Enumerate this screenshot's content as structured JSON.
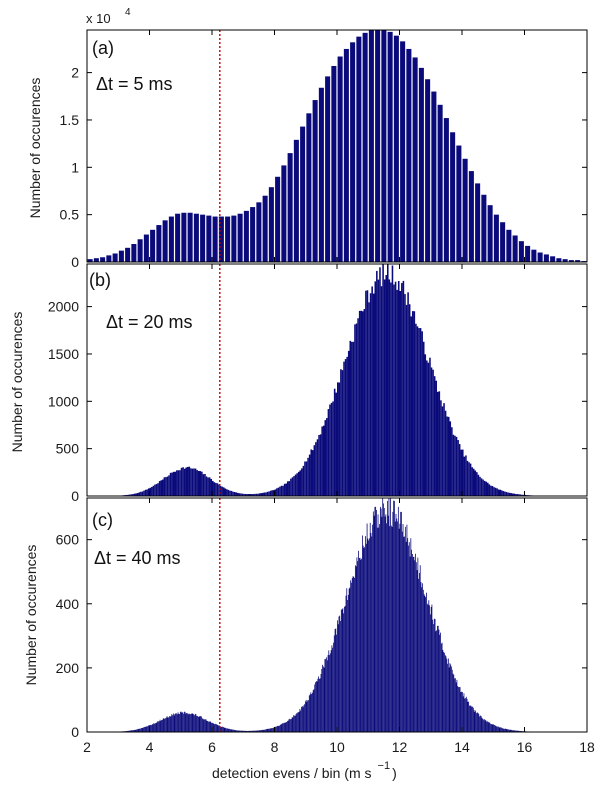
{
  "colors": {
    "bars": "#0a0a7a",
    "threshold": "#cc0000",
    "axes": "#000000"
  },
  "chart_data": [
    {
      "type": "bar",
      "panel_label": "(a)",
      "annotation": "Δt = 5 ms",
      "ylabel": "Number of occurences",
      "y_scale_text": "x 10",
      "y_scale_exponent": "4",
      "xlim": [
        2,
        18
      ],
      "ylim": [
        0,
        2.45
      ],
      "yticks": [
        0,
        0.5,
        1,
        1.5,
        2
      ],
      "ytick_labels": [
        "0",
        "0.5",
        "1",
        "1.5",
        "2"
      ],
      "bar_width": 0.2,
      "threshold_x": 6.25,
      "peaks": [
        {
          "mu": 5.2,
          "sigma": 0.95,
          "amp": 0.45
        },
        {
          "mu": 11.6,
          "sigma": 1.75,
          "amp": 2.45
        }
      ],
      "floor": 0,
      "noise": 0,
      "x": [
        2.1,
        2.3,
        2.5,
        2.7,
        2.9,
        3.1,
        3.3,
        3.5,
        3.7,
        3.9,
        4.1,
        4.3,
        4.5,
        4.7,
        4.9,
        5.1,
        5.3,
        5.5,
        5.7,
        5.9,
        6.1,
        6.3,
        6.5,
        6.7,
        6.9,
        7.1,
        7.3,
        7.5,
        7.7,
        7.9,
        8.1,
        8.3,
        8.5,
        8.7,
        8.9,
        9.1,
        9.3,
        9.5,
        9.7,
        9.9,
        10.1,
        10.3,
        10.5,
        10.7,
        10.9,
        11.1,
        11.3,
        11.5,
        11.7,
        11.9,
        12.1,
        12.3,
        12.5,
        12.7,
        12.9,
        13.1,
        13.3,
        13.5,
        13.7,
        13.9,
        14.1,
        14.3,
        14.5,
        14.7,
        14.9,
        15.1,
        15.3,
        15.5,
        15.7,
        15.9,
        16.1,
        16.3,
        16.5,
        16.7,
        16.9,
        17.1,
        17.3,
        17.5,
        17.7,
        17.9
      ],
      "values": [
        0.03,
        0.04,
        0.05,
        0.07,
        0.09,
        0.12,
        0.15,
        0.19,
        0.24,
        0.29,
        0.34,
        0.39,
        0.44,
        0.48,
        0.51,
        0.52,
        0.52,
        0.51,
        0.5,
        0.49,
        0.48,
        0.48,
        0.48,
        0.49,
        0.51,
        0.54,
        0.58,
        0.63,
        0.7,
        0.79,
        0.9,
        1.02,
        1.15,
        1.29,
        1.43,
        1.57,
        1.71,
        1.84,
        1.96,
        2.07,
        2.17,
        2.25,
        2.32,
        2.38,
        2.42,
        2.45,
        2.46,
        2.45,
        2.43,
        2.39,
        2.33,
        2.25,
        2.16,
        2.05,
        1.93,
        1.8,
        1.66,
        1.52,
        1.37,
        1.23,
        1.09,
        0.96,
        0.83,
        0.71,
        0.6,
        0.5,
        0.42,
        0.34,
        0.28,
        0.22,
        0.17,
        0.13,
        0.1,
        0.08,
        0.06,
        0.04,
        0.03,
        0.02,
        0.02,
        0.01
      ],
      "xlabel": "",
      "xtick_labels": []
    },
    {
      "type": "bar",
      "panel_label": "(b)",
      "annotation": "Δt = 20 ms",
      "ylabel": "Number of occurences",
      "xlim": [
        2,
        18
      ],
      "ylim": [
        0,
        2450
      ],
      "yticks": [
        0,
        500,
        1000,
        1500,
        2000
      ],
      "ytick_labels": [
        "0",
        "500",
        "1000",
        "1500",
        "2000"
      ],
      "bar_width": 0.05,
      "threshold_x": 6.25,
      "peaks": [
        {
          "mu": 5.2,
          "sigma": 0.75,
          "amp": 300
        },
        {
          "mu": 11.6,
          "sigma": 1.35,
          "amp": 2350
        }
      ],
      "floor": 0,
      "noise": 0.05,
      "seed": 7,
      "xlabel": "",
      "xtick_labels": []
    },
    {
      "type": "bar",
      "panel_label": "(c)",
      "annotation": "Δt = 40 ms",
      "ylabel": "Number of occurences",
      "xlim": [
        2,
        18
      ],
      "ylim": [
        0,
        730
      ],
      "yticks": [
        0,
        200,
        400,
        600
      ],
      "ytick_labels": [
        "0",
        "200",
        "400",
        "600"
      ],
      "bar_width": 0.025,
      "threshold_x": 6.25,
      "peaks": [
        {
          "mu": 5.1,
          "sigma": 0.75,
          "amp": 60
        },
        {
          "mu": 11.6,
          "sigma": 1.3,
          "amp": 690
        }
      ],
      "floor": 0,
      "noise": 0.07,
      "seed": 13,
      "xlabel": "detection evens / bin (m s",
      "xlabel_exponent": "−1",
      "xlabel_close": ")",
      "xticks": [
        2,
        4,
        6,
        8,
        10,
        12,
        14,
        16,
        18
      ],
      "xtick_labels": [
        "2",
        "4",
        "6",
        "8",
        "10",
        "12",
        "14",
        "16",
        "18"
      ]
    }
  ]
}
